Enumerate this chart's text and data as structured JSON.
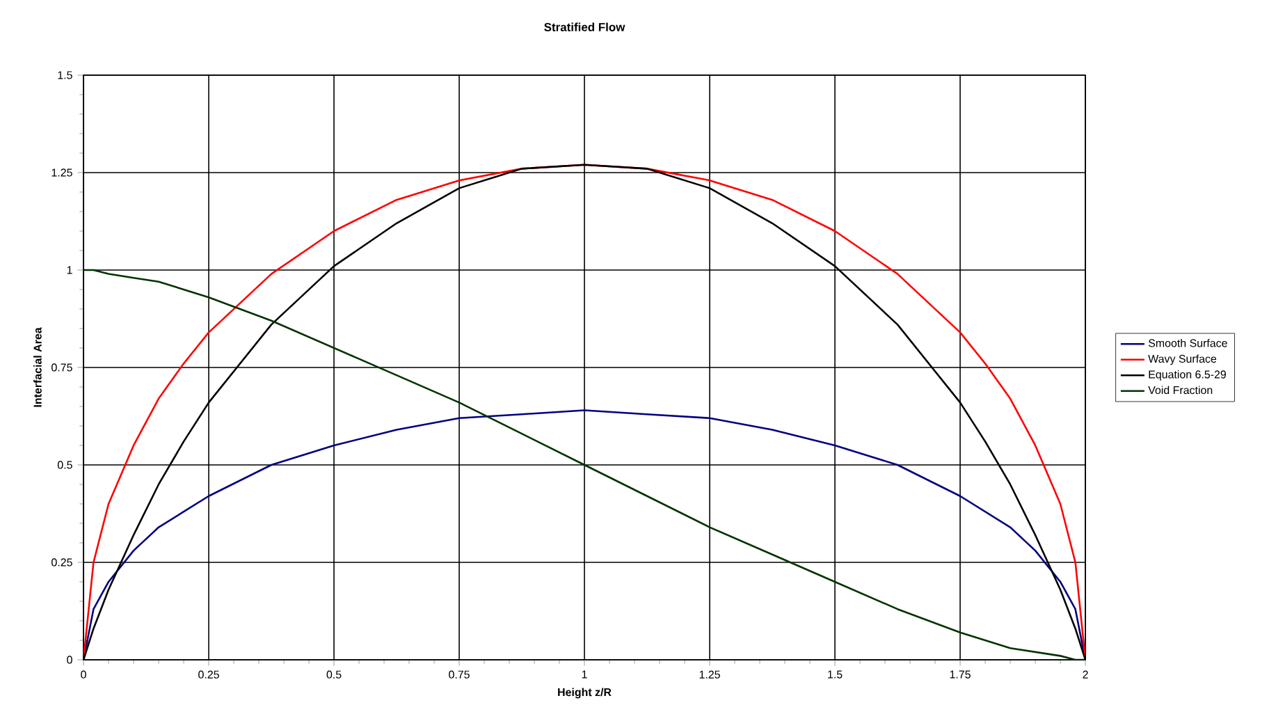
{
  "chart_data": {
    "type": "line",
    "title": "Stratified Flow",
    "xlabel": "Height z/R",
    "ylabel": "Interfacial Area",
    "x": [
      0,
      0.02,
      0.05,
      0.1,
      0.15,
      0.2,
      0.25,
      0.375,
      0.5,
      0.625,
      0.75,
      0.875,
      1,
      1.125,
      1.25,
      1.375,
      1.5,
      1.625,
      1.75,
      1.8,
      1.85,
      1.9,
      1.95,
      1.98,
      2
    ],
    "series": [
      {
        "name": "Smooth Surface",
        "color": "#000080",
        "values": [
          0,
          0.13,
          0.2,
          0.28,
          0.34,
          0.38,
          0.42,
          0.5,
          0.55,
          0.59,
          0.62,
          0.63,
          0.64,
          0.63,
          0.62,
          0.59,
          0.55,
          0.5,
          0.42,
          0.38,
          0.34,
          0.28,
          0.2,
          0.13,
          0
        ]
      },
      {
        "name": "Wavy Surface",
        "color": "#ff0000",
        "values": [
          0,
          0.25,
          0.4,
          0.55,
          0.67,
          0.76,
          0.84,
          0.99,
          1.1,
          1.18,
          1.23,
          1.26,
          1.27,
          1.26,
          1.23,
          1.18,
          1.1,
          0.99,
          0.84,
          0.76,
          0.67,
          0.55,
          0.4,
          0.25,
          0
        ]
      },
      {
        "name": "Equation 6.5-29",
        "color": "#000000",
        "values": [
          0,
          0.08,
          0.18,
          0.32,
          0.45,
          0.56,
          0.66,
          0.86,
          1.01,
          1.12,
          1.21,
          1.26,
          1.27,
          1.26,
          1.21,
          1.12,
          1.01,
          0.86,
          0.66,
          0.56,
          0.45,
          0.32,
          0.18,
          0.08,
          0
        ]
      },
      {
        "name": "Void Fraction",
        "color": "#003300",
        "values": [
          1,
          1.0,
          0.99,
          0.98,
          0.97,
          0.95,
          0.93,
          0.87,
          0.8,
          0.73,
          0.66,
          0.58,
          0.5,
          0.42,
          0.34,
          0.27,
          0.2,
          0.13,
          0.07,
          0.05,
          0.03,
          0.02,
          0.01,
          0.0,
          0
        ]
      }
    ],
    "xlim": [
      0,
      2
    ],
    "xticks": [
      0,
      0.25,
      0.5,
      0.75,
      1,
      1.25,
      1.5,
      1.75,
      2
    ],
    "ylim": [
      0,
      1.5
    ],
    "yticks": [
      0,
      0.25,
      0.5,
      0.75,
      1,
      1.25,
      1.5
    ],
    "grid": true,
    "legend": "right",
    "marker": "none",
    "line_style": "solid"
  }
}
